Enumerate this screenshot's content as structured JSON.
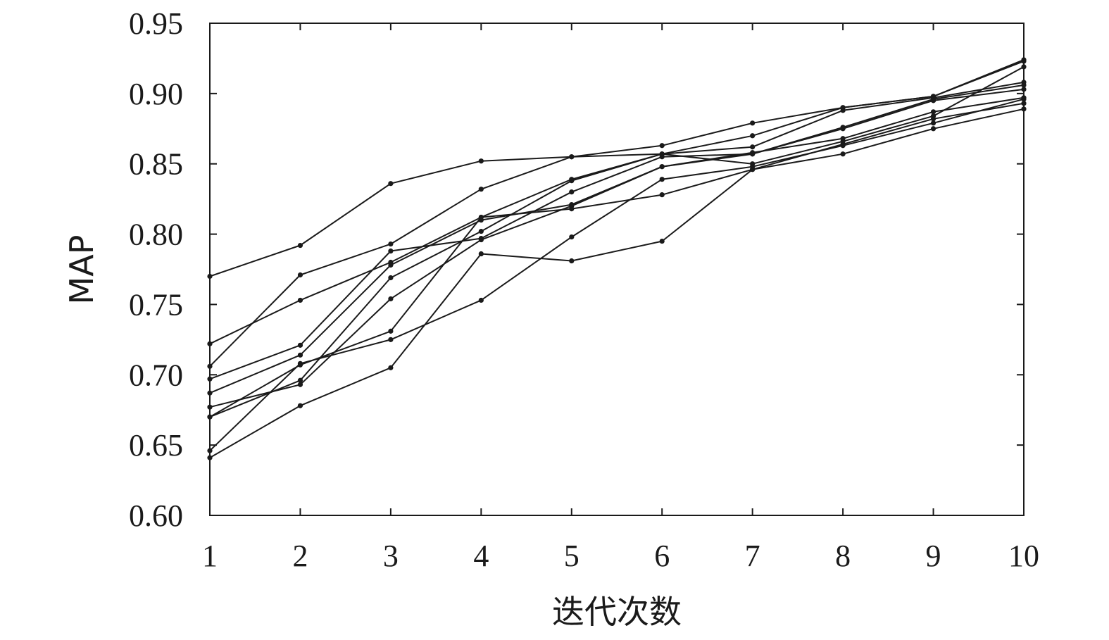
{
  "chart_data": {
    "type": "line",
    "title": "",
    "xlabel": "迭代次数",
    "ylabel": "MAP",
    "x": [
      1,
      2,
      3,
      4,
      5,
      6,
      7,
      8,
      9,
      10
    ],
    "x_tick_labels": [
      "1",
      "2",
      "3",
      "4",
      "5",
      "6",
      "7",
      "8",
      "9",
      "10"
    ],
    "y_tick_labels": [
      "0.60",
      "0.65",
      "0.70",
      "0.75",
      "0.80",
      "0.85",
      "0.90",
      "0.95"
    ],
    "xlim": [
      1,
      10
    ],
    "ylim": [
      0.6,
      0.95
    ],
    "grid": false,
    "legend": "none",
    "line_color": "#1a1a1a",
    "series": [
      {
        "values": [
          0.77,
          0.792,
          0.836,
          0.852,
          0.855,
          0.863,
          0.879,
          0.89,
          0.898,
          0.924
        ]
      },
      {
        "values": [
          0.722,
          0.753,
          0.78,
          0.812,
          0.839,
          0.857,
          0.87,
          0.89,
          0.898,
          0.923
        ]
      },
      {
        "values": [
          0.706,
          0.771,
          0.793,
          0.832,
          0.855,
          0.857,
          0.862,
          0.888,
          0.897,
          0.908
        ]
      },
      {
        "values": [
          0.697,
          0.721,
          0.788,
          0.797,
          0.83,
          0.855,
          0.857,
          0.876,
          0.896,
          0.906
        ]
      },
      {
        "values": [
          0.687,
          0.714,
          0.778,
          0.81,
          0.821,
          0.848,
          0.857,
          0.875,
          0.895,
          0.903
        ]
      },
      {
        "values": [
          0.677,
          0.693,
          0.754,
          0.796,
          0.82,
          0.848,
          0.858,
          0.868,
          0.887,
          0.897
        ]
      },
      {
        "values": [
          0.67,
          0.696,
          0.769,
          0.802,
          0.838,
          0.857,
          0.85,
          0.866,
          0.884,
          0.919
        ]
      },
      {
        "values": [
          0.67,
          0.707,
          0.731,
          0.812,
          0.818,
          0.828,
          0.846,
          0.864,
          0.882,
          0.893
        ]
      },
      {
        "values": [
          0.646,
          0.708,
          0.725,
          0.753,
          0.798,
          0.839,
          0.848,
          0.863,
          0.879,
          0.896
        ]
      },
      {
        "values": [
          0.641,
          0.678,
          0.705,
          0.786,
          0.781,
          0.795,
          0.846,
          0.857,
          0.875,
          0.889
        ]
      }
    ]
  }
}
